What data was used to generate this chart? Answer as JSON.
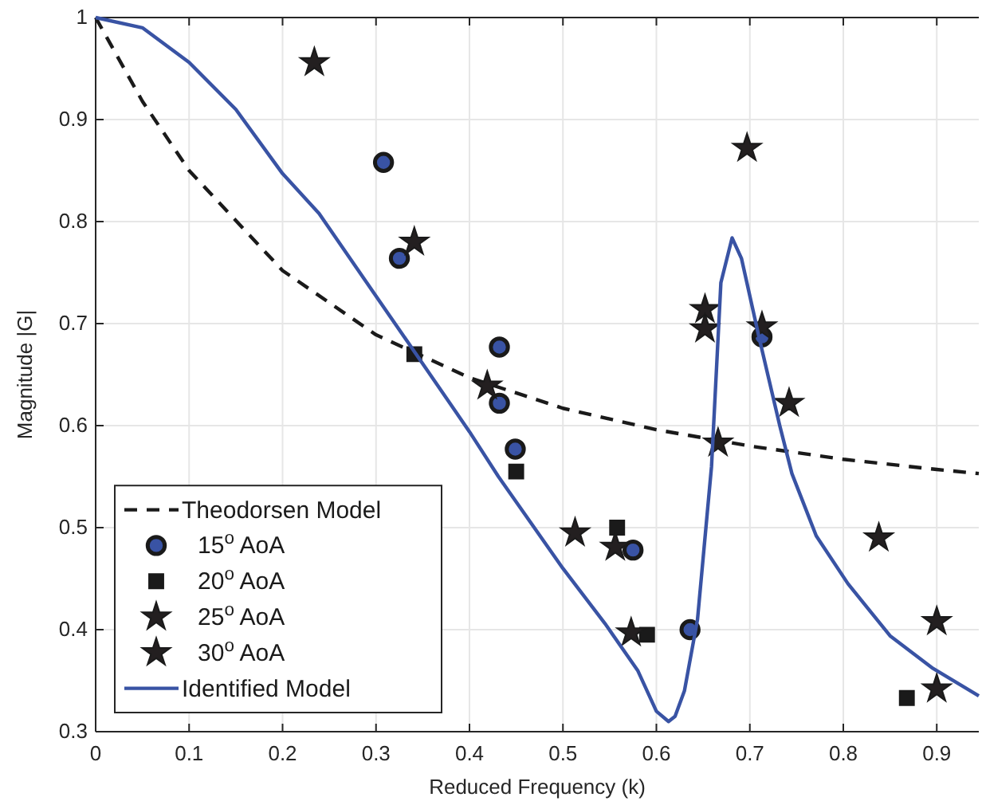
{
  "chart_data": {
    "type": "scatter",
    "xlabel": "Reduced Frequency (k)",
    "ylabel": "Magnitude |G|",
    "xlim": [
      0,
      0.945
    ],
    "ylim": [
      0.3,
      1
    ],
    "xticks": [
      0,
      0.1,
      0.2,
      0.3,
      0.4,
      0.5,
      0.6,
      0.7,
      0.8,
      0.9
    ],
    "yticks": [
      0.3,
      0.4,
      0.5,
      0.6,
      0.7,
      0.8,
      0.9,
      1
    ],
    "grid": true,
    "legend": "bottom left",
    "series": [
      {
        "name": "Theodorsen Model",
        "type": "line",
        "line_style": "dashed",
        "marker": "none",
        "color": "#1a1a1a",
        "x": [
          0,
          0.05,
          0.1,
          0.2,
          0.3,
          0.4,
          0.5,
          0.6,
          0.7,
          0.8,
          0.9,
          0.945
        ],
        "values": [
          1,
          0.918,
          0.85,
          0.752,
          0.689,
          0.647,
          0.617,
          0.596,
          0.58,
          0.567,
          0.557,
          0.553
        ]
      },
      {
        "name": "15$^{o}$ AoA",
        "marker": "circle",
        "color": "#3953a4",
        "x": [
          0.308,
          0.325,
          0.432,
          0.432,
          0.449,
          0.575,
          0.636,
          0.713
        ],
        "values": [
          0.858,
          0.764,
          0.677,
          0.622,
          0.577,
          0.478,
          0.4,
          0.687
        ]
      },
      {
        "name": "20$^{o}$ AoA",
        "marker": "square",
        "color": "#1a1a1a",
        "x": [
          0.341,
          0.45,
          0.558,
          0.59,
          0.868
        ],
        "values": [
          0.67,
          0.555,
          0.5,
          0.395,
          0.333
        ]
      },
      {
        "name": "25$^{o}$ AoA",
        "marker": "star",
        "color": "#231f20",
        "x": [
          0.234,
          0.341,
          0.556,
          0.652,
          0.652,
          0.713,
          0.9
        ],
        "values": [
          0.956,
          0.78,
          0.481,
          0.714,
          0.695,
          0.697,
          0.342
        ]
      },
      {
        "name": "30$^{o}$ AoA",
        "marker": "star",
        "color": "#231f20",
        "x": [
          0.419,
          0.513,
          0.573,
          0.666,
          0.697,
          0.742,
          0.838,
          0.9
        ],
        "values": [
          0.639,
          0.495,
          0.397,
          0.583,
          0.872,
          0.622,
          0.49,
          0.408
        ]
      },
      {
        "name": "Identified Model",
        "type": "line",
        "line_style": "solid",
        "marker": "none",
        "color": "#3953a4",
        "x": [
          0,
          0.05,
          0.1,
          0.15,
          0.2,
          0.239,
          0.3,
          0.343,
          0.4,
          0.431,
          0.5,
          0.545,
          0.58,
          0.6,
          0.613,
          0.62,
          0.63,
          0.644,
          0.659,
          0.669,
          0.681,
          0.691,
          0.71,
          0.732,
          0.745,
          0.771,
          0.805,
          0.85,
          0.896,
          0.945
        ],
        "values": [
          1,
          0.99,
          0.956,
          0.91,
          0.847,
          0.808,
          0.727,
          0.67,
          0.594,
          0.55,
          0.46,
          0.406,
          0.36,
          0.32,
          0.31,
          0.315,
          0.34,
          0.41,
          0.56,
          0.74,
          0.784,
          0.764,
          0.686,
          0.6,
          0.553,
          0.492,
          0.445,
          0.394,
          0.362,
          0.335
        ]
      }
    ]
  }
}
